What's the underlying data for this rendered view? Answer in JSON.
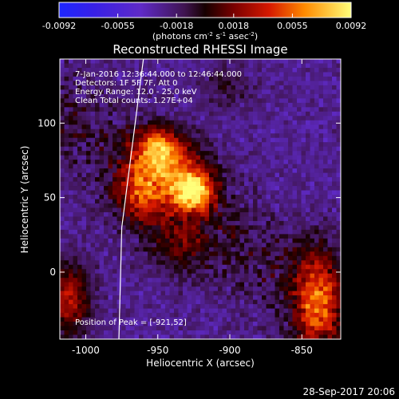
{
  "colors": {
    "background": "#000000",
    "text": "#ffffff"
  },
  "chart_data": {
    "type": "heatmap",
    "title": "Reconstructed RHESSI Image",
    "xlabel": "Heliocentric X (arcsec)",
    "ylabel": "Heliocentric Y (arcsec)",
    "xlim": [
      -1018,
      -823
    ],
    "ylim": [
      -45,
      143
    ],
    "x_ticks": [
      -1000,
      -950,
      -900,
      -850
    ],
    "y_ticks": [
      0,
      50,
      100
    ],
    "x_tick_labels": [
      "-1000",
      "-950",
      "-900",
      "-850"
    ],
    "y_tick_labels": [
      "0",
      "50",
      "100"
    ],
    "info_lines": [
      "7-Jan-2016 12:36:44.000 to 12:46:44.000",
      "Detectors: 1F 5F 7F, Att 0",
      "Energy Range: 12.0 - 25.0 keV",
      "Clean     Total counts: 1.27E+04"
    ],
    "peak_label": "Position of Peak = [-921,52]",
    "peak_position": [
      -921,
      52
    ],
    "colorbar": {
      "min": -0.0092,
      "max": 0.0092,
      "tick_values": [
        -0.0092,
        -0.0055,
        -0.0018,
        0.0018,
        0.0055,
        0.0092
      ],
      "tick_labels": [
        "-0.0092",
        "-0.0055",
        "-0.0018",
        "0.0018",
        "0.0055",
        "0.0092"
      ],
      "units_text": "(photons cm",
      "units_sup1": "-2",
      "units_mid": " s",
      "units_sup2": "-1",
      "units_mid2": " asec",
      "units_sup3": "-2",
      "units_end": ")"
    },
    "sources": [
      {
        "x": -925,
        "y": 54,
        "amplitude": 0.0092
      },
      {
        "x": -950,
        "y": 83,
        "amplitude": 0.0068
      },
      {
        "x": -962,
        "y": 53,
        "amplitude": 0.0052
      },
      {
        "x": -940,
        "y": 68,
        "amplitude": 0.0048
      },
      {
        "x": -1012,
        "y": -18,
        "amplitude": 0.0058
      },
      {
        "x": -840,
        "y": -28,
        "amplitude": 0.005
      },
      {
        "x": -840,
        "y": -5,
        "amplitude": 0.0035
      },
      {
        "x": -902,
        "y": 125,
        "amplitude": 0.002
      },
      {
        "x": -935,
        "y": 18,
        "amplitude": 0.0028
      }
    ],
    "limb_line": [
      {
        "x": -960,
        "y": 143
      },
      {
        "x": -975,
        "y": 30
      },
      {
        "x": -977,
        "y": -45
      }
    ]
  },
  "footer": {
    "date_stamp": "28-Sep-2017 20:06"
  }
}
